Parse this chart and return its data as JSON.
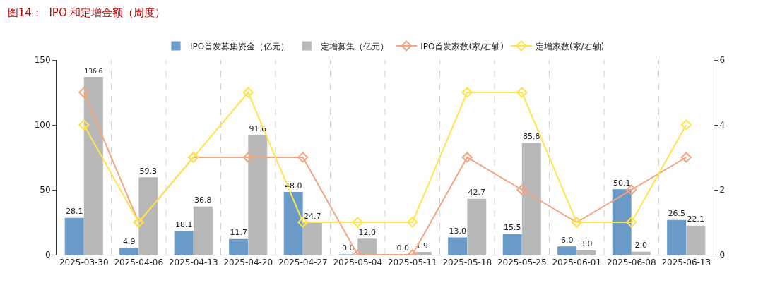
{
  "chart_data": {
    "type": "bar",
    "title": "图14：  IPO 和定增金额（周度）",
    "categories": [
      "2025-03-30",
      "2025-04-06",
      "2025-04-13",
      "2025-04-20",
      "2025-04-27",
      "2025-05-04",
      "2025-05-11",
      "2025-05-18",
      "2025-05-25",
      "2025-06-01",
      "2025-06-08",
      "2025-06-13"
    ],
    "series": [
      {
        "name": "IPO首发募集资金（亿元）",
        "color": "#6a9bc8",
        "values": [
          28.1,
          4.9,
          18.1,
          11.7,
          48.0,
          0.0,
          0.0,
          13.0,
          15.5,
          6.0,
          50.1,
          26.5
        ],
        "value_labels": [
          "28.1",
          "4.9",
          "18.1",
          "11.7",
          "48.0",
          "0.0",
          "0.0",
          "13.0",
          "15.5",
          "6.0",
          "50.1",
          "26.5"
        ]
      },
      {
        "name": "定增募集（亿元）",
        "color": "#b8b8b8",
        "values": [
          136.6,
          59.3,
          36.8,
          91.6,
          24.7,
          12.0,
          1.9,
          42.7,
          85.8,
          3.0,
          2.0,
          22.1
        ],
        "value_labels": [
          "136.6",
          "59.3",
          "36.8",
          "91.6",
          "24.7",
          "12.0",
          "1.9",
          "42.7",
          "85.8",
          "3.0",
          "2.0",
          "22.1"
        ]
      },
      {
        "name": "IPO首发家数(家/右轴)",
        "type": "line",
        "axis": "y2",
        "color": "#f4a582",
        "values": [
          5,
          1,
          3,
          3,
          3,
          0,
          0,
          3,
          2,
          1,
          2,
          3
        ]
      },
      {
        "name": "定增家数(家/右轴)",
        "type": "line",
        "axis": "y2",
        "color": "#ffe44d",
        "values": [
          4,
          1,
          3,
          5,
          1,
          1,
          1,
          5,
          5,
          1,
          1,
          4
        ]
      }
    ],
    "ylim": [
      0,
      150
    ],
    "yticks": [
      0,
      50,
      100,
      150
    ],
    "y2lim": [
      0,
      6
    ],
    "y2ticks": [
      0,
      2,
      4,
      6
    ],
    "grid": "x",
    "legend": "top",
    "marker": "diamond",
    "line_style": "solid"
  }
}
